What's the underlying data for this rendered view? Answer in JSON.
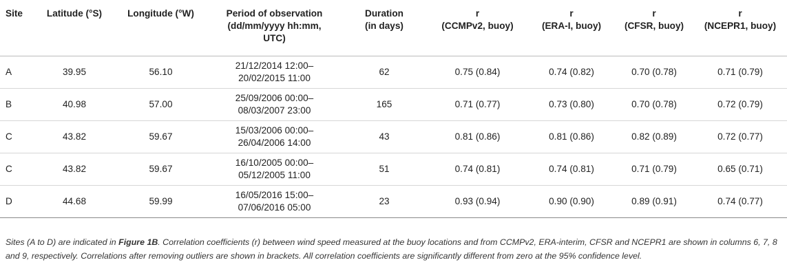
{
  "table": {
    "headers": [
      {
        "lines": [
          "Site"
        ]
      },
      {
        "lines": [
          "Latitude (°S)"
        ]
      },
      {
        "lines": [
          "Longitude (°W)"
        ]
      },
      {
        "lines": [
          "Period of observation",
          "(dd/mm/yyyy hh:mm,",
          "UTC)"
        ]
      },
      {
        "lines": [
          "Duration",
          "(in days)"
        ]
      },
      {
        "lines": [
          "r",
          "(CCMPv2, buoy)"
        ]
      },
      {
        "lines": [
          "r",
          "(ERA-I, buoy)"
        ]
      },
      {
        "lines": [
          "r",
          "(CFSR, buoy)"
        ]
      },
      {
        "lines": [
          "r",
          "(NCEPR1, buoy)"
        ]
      }
    ],
    "rows": [
      {
        "site": "A",
        "lat": "39.95",
        "lon": "56.10",
        "period": [
          "21/12/2014 12:00–",
          "20/02/2015 11:00"
        ],
        "duration": "62",
        "r_ccmp": "0.75 (0.84)",
        "r_era": "0.74 (0.82)",
        "r_cfsr": "0.70 (0.78)",
        "r_ncep": "0.71 (0.79)"
      },
      {
        "site": "B",
        "lat": "40.98",
        "lon": "57.00",
        "period": [
          "25/09/2006 00:00–",
          "08/03/2007 23:00"
        ],
        "duration": "165",
        "r_ccmp": "0.71 (0.77)",
        "r_era": "0.73 (0.80)",
        "r_cfsr": "0.70 (0.78)",
        "r_ncep": "0.72 (0.79)"
      },
      {
        "site": "C",
        "lat": "43.82",
        "lon": "59.67",
        "period": [
          "15/03/2006 00:00–",
          "26/04/2006 14:00"
        ],
        "duration": "43",
        "r_ccmp": "0.81 (0.86)",
        "r_era": "0.81 (0.86)",
        "r_cfsr": "0.82 (0.89)",
        "r_ncep": "0.72 (0.77)"
      },
      {
        "site": "C",
        "lat": "43.82",
        "lon": "59.67",
        "period": [
          "16/10/2005 00:00–",
          "05/12/2005 11:00"
        ],
        "duration": "51",
        "r_ccmp": "0.74 (0.81)",
        "r_era": "0.74 (0.81)",
        "r_cfsr": "0.71 (0.79)",
        "r_ncep": "0.65 (0.71)"
      },
      {
        "site": "D",
        "lat": "44.68",
        "lon": "59.99",
        "period": [
          "16/05/2016 15:00–",
          "07/06/2016 05:00"
        ],
        "duration": "23",
        "r_ccmp": "0.93 (0.94)",
        "r_era": "0.90 (0.90)",
        "r_cfsr": "0.89 (0.91)",
        "r_ncep": "0.74 (0.77)"
      }
    ]
  },
  "caption": {
    "part1": "Sites (A to D) are indicated in ",
    "figure_ref": "Figure 1B",
    "part2": ". Correlation coefficients (r) between wind speed measured at the buoy locations and from CCMPv2, ERA-interim, CFSR and NCEPR1 are shown in columns 6, 7, 8 and 9, respectively. Correlations after removing outliers are shown in brackets. All correlation coefficients are significantly different from zero at the 95% confidence level."
  }
}
